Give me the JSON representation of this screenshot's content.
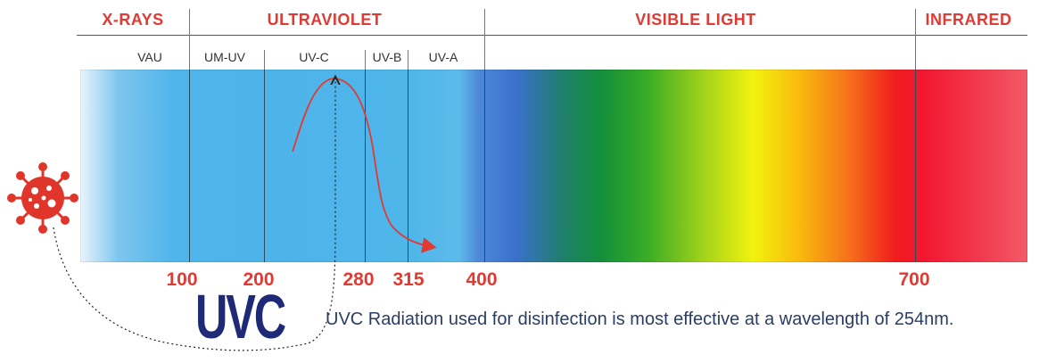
{
  "regions": [
    {
      "label": "X-RAYS"
    },
    {
      "label": "ULTRAVIOLET"
    },
    {
      "label": "VISIBLE LIGHT"
    },
    {
      "label": "INFRARED"
    }
  ],
  "sub_bands": [
    {
      "label": "VAU"
    },
    {
      "label": "UM-UV"
    },
    {
      "label": "UV-C"
    },
    {
      "label": "UV-B"
    },
    {
      "label": "UV-A"
    }
  ],
  "wavelength_ticks": [
    "100",
    "200",
    "280",
    "315",
    "400",
    "700"
  ],
  "uvc_title": "UVC",
  "caption": "UVC Radiation used for disinfection is most effective at a wavelength of 254nm.",
  "colors": {
    "accent_red": "#e03a33",
    "title_navy": "#1e2a78",
    "virus_red": "#e0352b"
  },
  "icons": [
    "virus-icon"
  ]
}
